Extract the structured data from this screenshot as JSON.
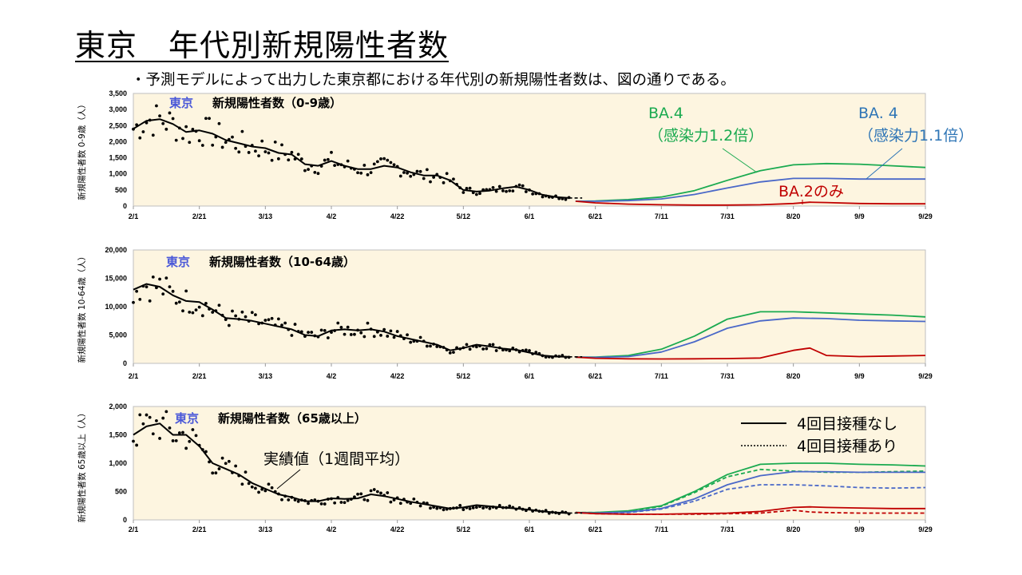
{
  "page": {
    "title": "東京　年代別新規陽性者数",
    "subtitle": "・予測モデルによって出力した東京都における年代別の新規陽性者数は、図の通りである。"
  },
  "colors": {
    "panel_bg": "#fdf5e0",
    "actual": "#000000",
    "ba4_12": "#1aaa50",
    "ba4_11": "#4a68c8",
    "ba2": "#c00000",
    "region_label": "#4a58d8"
  },
  "annotations": {
    "ba4_12_line1": "BA.4",
    "ba4_12_line2": "（感染力1.2倍）",
    "ba4_11_line1": "BA. 4",
    "ba4_11_line2": "（感染力1.1倍）",
    "ba2": "BA.2のみ",
    "actual_note": "実績値（1週間平均）"
  },
  "legend": {
    "no_4th": "4回目接種なし",
    "with_4th": "4回目接種あり"
  },
  "chart_data": [
    {
      "type": "line",
      "region": "東京",
      "title": "新規陽性者数（0-9歳）",
      "ylabel": "新規陽性者数 0-9歳（人）",
      "x_ticks": [
        "2/1",
        "2/21",
        "3/13",
        "4/2",
        "4/22",
        "5/12",
        "6/1",
        "6/21",
        "7/11",
        "7/31",
        "8/20",
        "9/9",
        "9/29"
      ],
      "y_ticks": [
        "0",
        "500",
        "1,000",
        "1,500",
        "2,000",
        "2,500",
        "3,000",
        "3,500"
      ],
      "ylim": [
        0,
        3500
      ],
      "xlim_day": [
        0,
        240
      ],
      "series": [
        {
          "key": "actual",
          "style": "solid",
          "x": [
            0,
            4,
            8,
            12,
            16,
            20,
            24,
            28,
            32,
            36,
            40,
            44,
            48,
            52,
            56,
            60,
            64,
            68,
            72,
            76,
            80,
            84,
            88,
            92,
            96,
            100,
            104,
            108,
            112,
            116,
            120,
            124,
            128,
            132
          ],
          "y": [
            2400,
            2650,
            2700,
            2550,
            2300,
            2350,
            2250,
            2050,
            1950,
            1850,
            1800,
            1650,
            1600,
            1300,
            1250,
            1400,
            1250,
            1150,
            1150,
            1250,
            1200,
            1050,
            950,
            950,
            800,
            500,
            450,
            480,
            550,
            600,
            500,
            350,
            280,
            250
          ]
        },
        {
          "key": "ba4_12",
          "style": "solid",
          "x": [
            134,
            140,
            150,
            160,
            170,
            180,
            190,
            200,
            210,
            220,
            230,
            240
          ],
          "y": [
            150,
            160,
            200,
            280,
            480,
            800,
            1100,
            1280,
            1320,
            1300,
            1250,
            1200
          ]
        },
        {
          "key": "ba4_11",
          "style": "solid",
          "x": [
            134,
            140,
            150,
            160,
            170,
            180,
            190,
            200,
            210,
            220,
            230,
            240
          ],
          "y": [
            150,
            150,
            170,
            220,
            360,
            560,
            750,
            860,
            860,
            840,
            840,
            840
          ]
        },
        {
          "key": "ba2",
          "style": "solid",
          "x": [
            134,
            140,
            150,
            160,
            170,
            180,
            190,
            200,
            205,
            210,
            220,
            230,
            240
          ],
          "y": [
            150,
            100,
            60,
            40,
            30,
            30,
            40,
            80,
            120,
            110,
            80,
            70,
            70
          ]
        }
      ]
    },
    {
      "type": "line",
      "region": "東京",
      "title": "新規陽性者数（10-64歳）",
      "ylabel": "新規陽性者数 10-64歳（人）",
      "x_ticks": [
        "2/1",
        "2/21",
        "3/13",
        "4/2",
        "4/22",
        "5/12",
        "6/1",
        "6/21",
        "7/11",
        "7/31",
        "8/20",
        "9/9",
        "9/29"
      ],
      "y_ticks": [
        "0",
        "5,000",
        "10,000",
        "15,000",
        "20,000"
      ],
      "ylim": [
        0,
        20000
      ],
      "xlim_day": [
        0,
        240
      ],
      "series": [
        {
          "key": "actual",
          "style": "solid",
          "x": [
            0,
            4,
            8,
            12,
            16,
            20,
            24,
            28,
            32,
            36,
            40,
            44,
            48,
            52,
            56,
            60,
            64,
            68,
            72,
            76,
            80,
            84,
            88,
            92,
            96,
            100,
            104,
            108,
            112,
            116,
            120,
            124,
            128,
            132
          ],
          "y": [
            13000,
            14000,
            13500,
            12000,
            11000,
            10800,
            9500,
            8000,
            7800,
            7500,
            7000,
            6500,
            6000,
            5000,
            4800,
            5800,
            6000,
            5800,
            6000,
            5600,
            4800,
            4300,
            3800,
            3300,
            2300,
            2700,
            3300,
            3000,
            2600,
            2400,
            1900,
            1400,
            1200,
            1150
          ]
        },
        {
          "key": "ba4_12",
          "style": "solid",
          "x": [
            134,
            140,
            150,
            160,
            170,
            180,
            190,
            200,
            210,
            220,
            230,
            240
          ],
          "y": [
            1100,
            1100,
            1400,
            2500,
            4800,
            7800,
            9100,
            9100,
            8900,
            8700,
            8500,
            8200
          ]
        },
        {
          "key": "ba4_11",
          "style": "solid",
          "x": [
            134,
            140,
            150,
            160,
            170,
            180,
            190,
            200,
            210,
            220,
            230,
            240
          ],
          "y": [
            1100,
            1050,
            1200,
            2000,
            3800,
            6200,
            7500,
            8000,
            7900,
            7600,
            7500,
            7400
          ]
        },
        {
          "key": "ba2",
          "style": "solid",
          "x": [
            134,
            140,
            150,
            160,
            170,
            180,
            190,
            200,
            205,
            210,
            220,
            230,
            240
          ],
          "y": [
            1100,
            900,
            800,
            780,
            800,
            850,
            950,
            2300,
            2700,
            1400,
            1200,
            1300,
            1400
          ]
        }
      ]
    },
    {
      "type": "line",
      "region": "東京",
      "title": "新規陽性者数（65歳以上）",
      "ylabel": "新規陽性者数 65歳以上（人）",
      "x_ticks": [
        "2/1",
        "2/21",
        "3/13",
        "4/2",
        "4/22",
        "5/12",
        "6/1",
        "6/21",
        "7/11",
        "7/31",
        "8/20",
        "9/9",
        "9/29"
      ],
      "y_ticks": [
        "0",
        "500",
        "1,000",
        "1,500",
        "2,000"
      ],
      "ylim": [
        0,
        2000
      ],
      "xlim_day": [
        0,
        240
      ],
      "series": [
        {
          "key": "actual",
          "style": "solid",
          "x": [
            0,
            4,
            8,
            12,
            16,
            20,
            24,
            28,
            32,
            36,
            40,
            44,
            48,
            52,
            56,
            60,
            64,
            68,
            72,
            76,
            80,
            84,
            88,
            92,
            96,
            100,
            104,
            108,
            112,
            116,
            120,
            124,
            128,
            132
          ],
          "y": [
            1500,
            1650,
            1700,
            1500,
            1500,
            1300,
            1000,
            900,
            800,
            650,
            550,
            450,
            400,
            330,
            330,
            380,
            370,
            380,
            450,
            420,
            370,
            320,
            280,
            240,
            200,
            220,
            260,
            240,
            220,
            200,
            180,
            150,
            130,
            120
          ]
        },
        {
          "key": "ba4_12",
          "style": "solid",
          "x": [
            134,
            140,
            150,
            160,
            170,
            180,
            190,
            200,
            210,
            220,
            230,
            240
          ],
          "y": [
            130,
            130,
            160,
            250,
            500,
            800,
            980,
            1000,
            1000,
            980,
            970,
            950
          ]
        },
        {
          "key": "ba4_12",
          "style": "dashed",
          "x": [
            134,
            140,
            150,
            160,
            170,
            180,
            190,
            200,
            210,
            220,
            230,
            240
          ],
          "y": [
            130,
            130,
            150,
            240,
            480,
            760,
            890,
            860,
            840,
            840,
            850,
            860
          ]
        },
        {
          "key": "ba4_11",
          "style": "solid",
          "x": [
            134,
            140,
            150,
            160,
            170,
            180,
            190,
            200,
            210,
            220,
            230,
            240
          ],
          "y": [
            130,
            120,
            140,
            200,
            370,
            620,
            780,
            850,
            850,
            840,
            840,
            840
          ]
        },
        {
          "key": "ba4_11",
          "style": "dashed",
          "x": [
            134,
            140,
            150,
            160,
            170,
            180,
            190,
            200,
            210,
            220,
            230,
            240
          ],
          "y": [
            130,
            120,
            130,
            190,
            330,
            540,
            620,
            620,
            600,
            570,
            560,
            570
          ]
        },
        {
          "key": "ba2",
          "style": "solid",
          "x": [
            134,
            140,
            150,
            160,
            170,
            180,
            190,
            200,
            205,
            210,
            220,
            230,
            240
          ],
          "y": [
            130,
            110,
            100,
            100,
            110,
            120,
            150,
            220,
            230,
            220,
            210,
            200,
            200
          ]
        },
        {
          "key": "ba2",
          "style": "dashed",
          "x": [
            134,
            140,
            150,
            160,
            170,
            180,
            190,
            200,
            205,
            210,
            220,
            230,
            240
          ],
          "y": [
            130,
            110,
            100,
            100,
            100,
            110,
            120,
            170,
            140,
            130,
            120,
            120,
            120
          ]
        }
      ]
    }
  ]
}
